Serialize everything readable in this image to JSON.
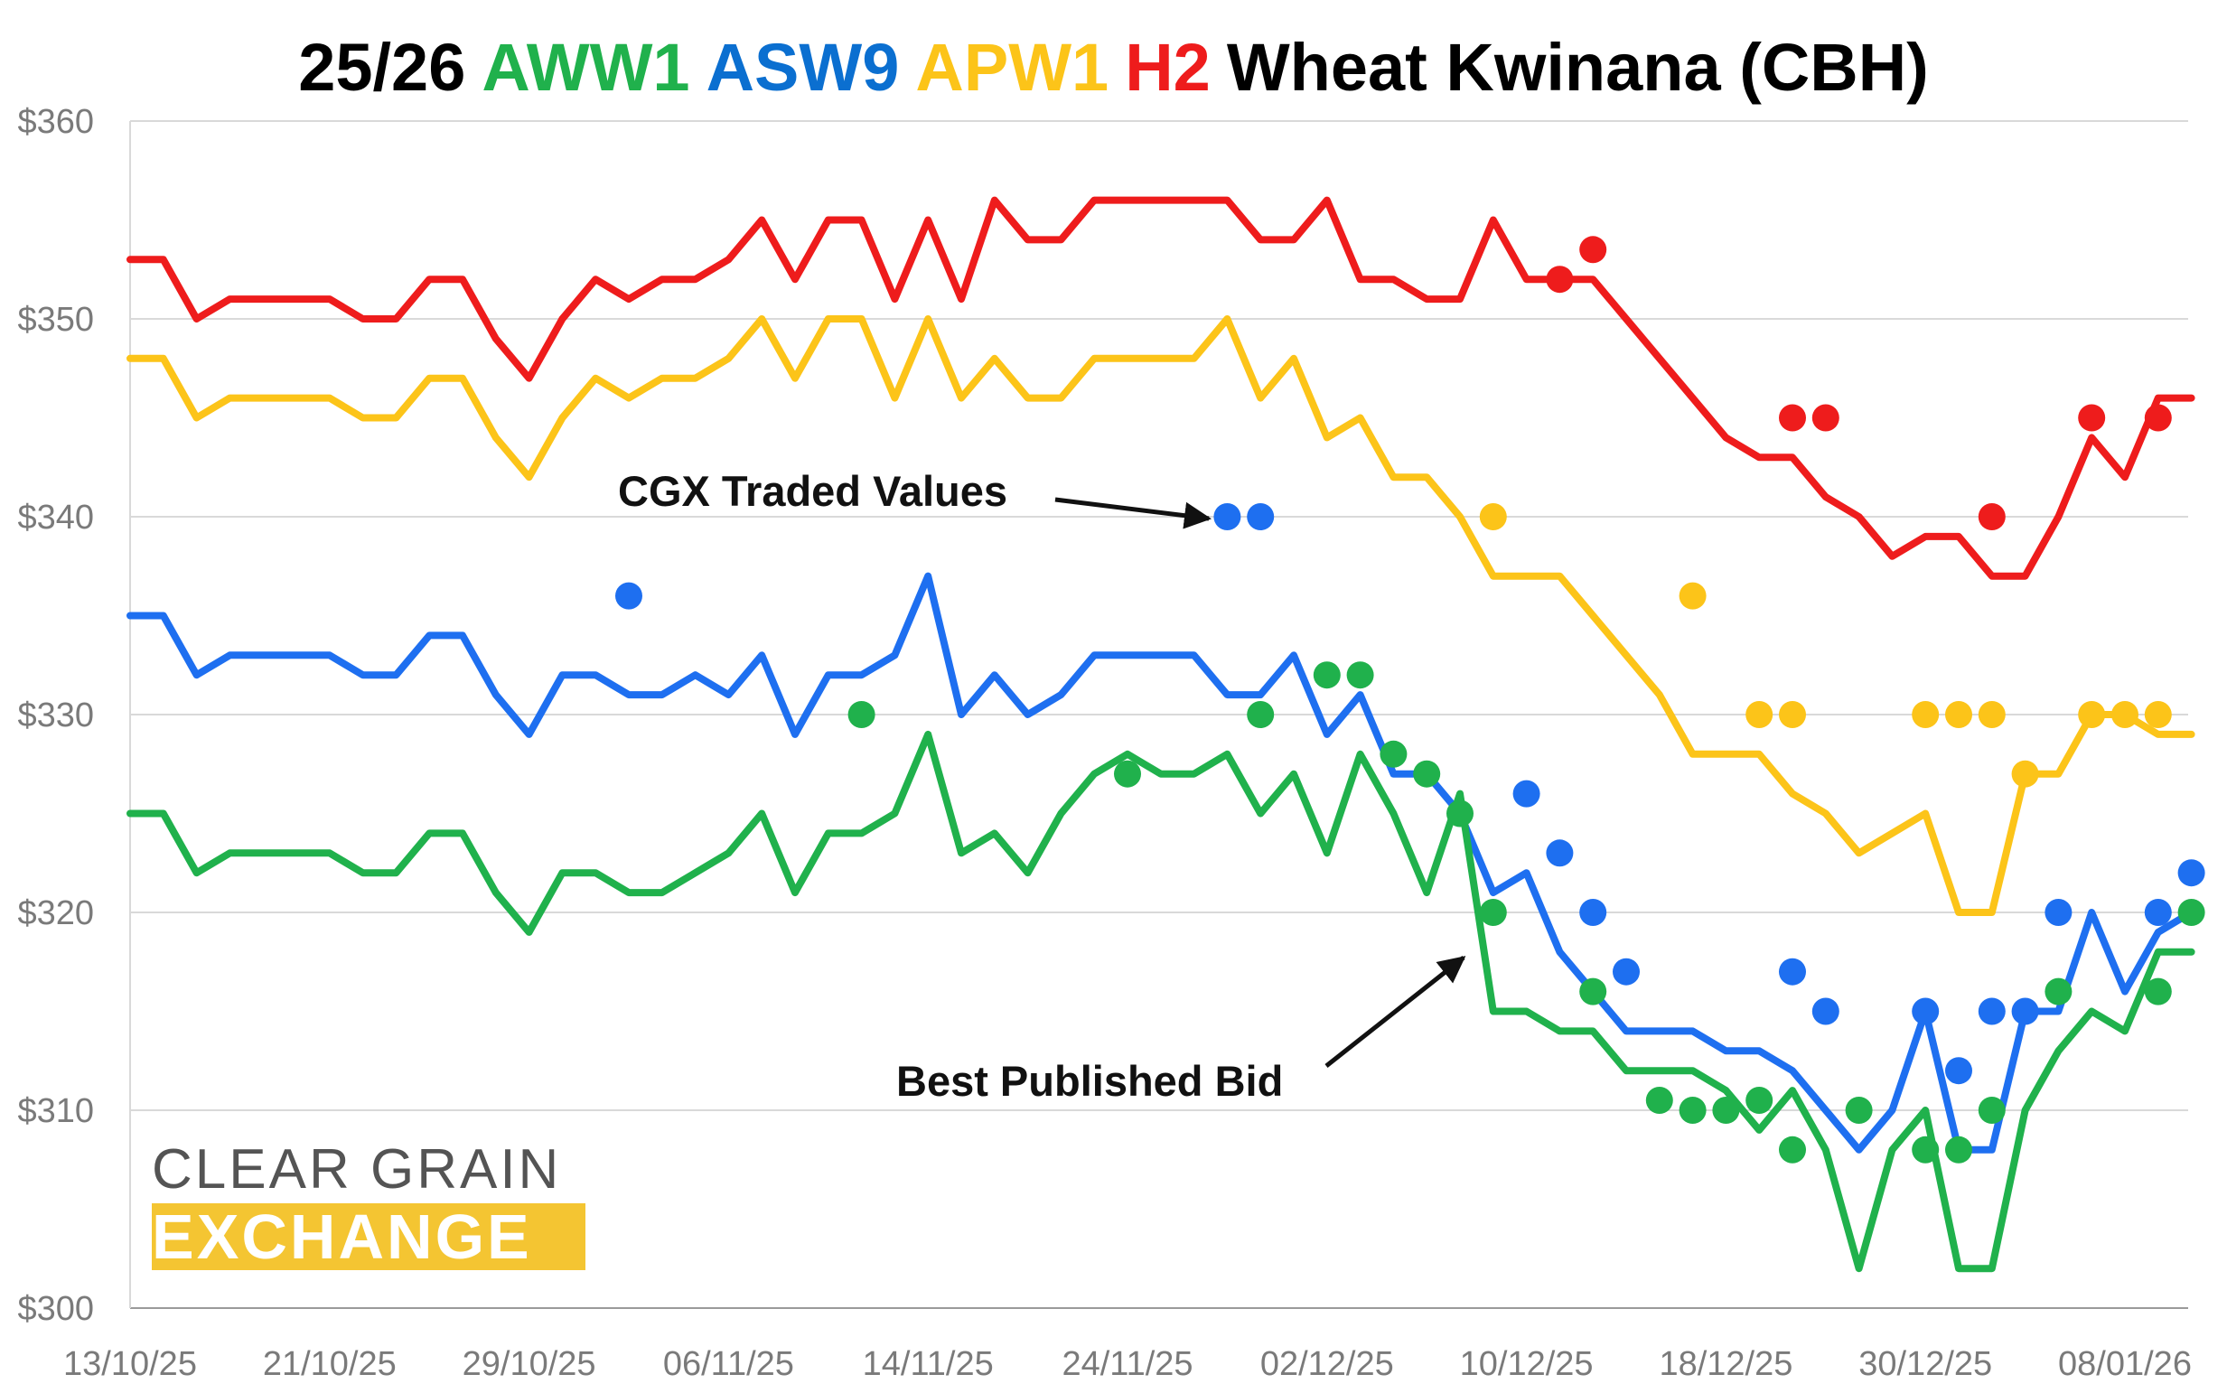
{
  "chart_data": {
    "type": "line",
    "title": {
      "prefix": "25/26",
      "aww1": "AWW1",
      "asw9": "ASW9",
      "apw1": "APW1",
      "h2": "H2",
      "rest": "Wheat Kwinana (CBH)"
    },
    "ylim": [
      300,
      360
    ],
    "yticks": [
      {
        "value": 300,
        "label": "$300"
      },
      {
        "value": 310,
        "label": "$310"
      },
      {
        "value": 320,
        "label": "$320"
      },
      {
        "value": 330,
        "label": "$330"
      },
      {
        "value": 340,
        "label": "$340"
      },
      {
        "value": 350,
        "label": "$350"
      },
      {
        "value": 360,
        "label": "$360"
      }
    ],
    "x_count": 63,
    "xticks": [
      {
        "index": 0,
        "label": "13/10/25"
      },
      {
        "index": 6,
        "label": "21/10/25"
      },
      {
        "index": 12,
        "label": "29/10/25"
      },
      {
        "index": 18,
        "label": "06/11/25"
      },
      {
        "index": 24,
        "label": "14/11/25"
      },
      {
        "index": 30,
        "label": "24/11/25"
      },
      {
        "index": 36,
        "label": "02/12/25"
      },
      {
        "index": 42,
        "label": "10/12/25"
      },
      {
        "index": 48,
        "label": "18/12/25"
      },
      {
        "index": 54,
        "label": "30/12/25"
      },
      {
        "index": 60,
        "label": "08/01/26"
      }
    ],
    "grid": "horizontal",
    "series": [
      {
        "name": "H2",
        "color": "#ee1c1c",
        "values": [
          353,
          353,
          350,
          351,
          351,
          351,
          351,
          350,
          350,
          352,
          352,
          349,
          347,
          350,
          352,
          351,
          352,
          352,
          353,
          355,
          352,
          355,
          355,
          351,
          355,
          351,
          356,
          354,
          354,
          356,
          356,
          356,
          356,
          356,
          354,
          354,
          356,
          352,
          352,
          351,
          351,
          355,
          352,
          352,
          352,
          350,
          348,
          346,
          344,
          343,
          343,
          341,
          340,
          338,
          339,
          339,
          337,
          337,
          340,
          344,
          342,
          346,
          346
        ],
        "traded": [
          [
            43,
            352
          ],
          [
            44,
            353.5
          ],
          [
            50,
            345
          ],
          [
            51,
            345
          ],
          [
            56,
            340
          ],
          [
            59,
            345
          ],
          [
            61,
            345
          ]
        ]
      },
      {
        "name": "APW1",
        "color": "#fcc419",
        "values": [
          348,
          348,
          345,
          346,
          346,
          346,
          346,
          345,
          345,
          347,
          347,
          344,
          342,
          345,
          347,
          346,
          347,
          347,
          348,
          350,
          347,
          350,
          350,
          346,
          350,
          346,
          348,
          346,
          346,
          348,
          348,
          348,
          348,
          350,
          346,
          348,
          344,
          345,
          342,
          342,
          340,
          337,
          337,
          337,
          335,
          333,
          331,
          328,
          328,
          328,
          326,
          325,
          323,
          324,
          325,
          320,
          320,
          327,
          327,
          330,
          330,
          329,
          329
        ],
        "traded": [
          [
            41,
            340
          ],
          [
            47,
            336
          ],
          [
            49,
            330
          ],
          [
            50,
            330
          ],
          [
            54,
            330
          ],
          [
            55,
            330
          ],
          [
            56,
            330
          ],
          [
            57,
            327
          ],
          [
            59,
            330
          ],
          [
            60,
            330
          ],
          [
            61,
            330
          ]
        ]
      },
      {
        "name": "ASW9",
        "color": "#1e6ff0",
        "values": [
          335,
          335,
          332,
          333,
          333,
          333,
          333,
          332,
          332,
          334,
          334,
          331,
          329,
          332,
          332,
          331,
          331,
          332,
          331,
          333,
          329,
          332,
          332,
          333,
          337,
          330,
          332,
          330,
          331,
          333,
          333,
          333,
          333,
          331,
          331,
          333,
          329,
          331,
          327,
          327,
          325,
          321,
          322,
          318,
          316,
          314,
          314,
          314,
          313,
          313,
          312,
          310,
          308,
          310,
          315,
          308,
          308,
          315,
          315,
          320,
          316,
          319,
          320
        ],
        "traded": [
          [
            15,
            336
          ],
          [
            33,
            340
          ],
          [
            34,
            340
          ],
          [
            42,
            326
          ],
          [
            43,
            323
          ],
          [
            44,
            320
          ],
          [
            45,
            317
          ],
          [
            50,
            317
          ],
          [
            51,
            315
          ],
          [
            54,
            315
          ],
          [
            55,
            312
          ],
          [
            56,
            315
          ],
          [
            57,
            315
          ],
          [
            58,
            320
          ],
          [
            61,
            320
          ],
          [
            62,
            322
          ]
        ]
      },
      {
        "name": "AWW1",
        "color": "#20b14c",
        "values": [
          325,
          325,
          322,
          323,
          323,
          323,
          323,
          322,
          322,
          324,
          324,
          321,
          319,
          322,
          322,
          321,
          321,
          322,
          323,
          325,
          321,
          324,
          324,
          325,
          329,
          323,
          324,
          322,
          325,
          327,
          328,
          327,
          327,
          328,
          325,
          327,
          323,
          328,
          325,
          321,
          326,
          315,
          315,
          314,
          314,
          312,
          312,
          312,
          311,
          309,
          311,
          308,
          302,
          308,
          310,
          302,
          302,
          310,
          313,
          315,
          314,
          318,
          318
        ],
        "traded": [
          [
            22,
            330
          ],
          [
            30,
            327
          ],
          [
            34,
            330
          ],
          [
            36,
            332
          ],
          [
            37,
            332
          ],
          [
            38,
            328
          ],
          [
            39,
            327
          ],
          [
            40,
            325
          ],
          [
            41,
            320
          ],
          [
            44,
            316
          ],
          [
            46,
            310.5
          ],
          [
            47,
            310
          ],
          [
            48,
            310
          ],
          [
            49,
            310.5
          ],
          [
            50,
            308
          ],
          [
            52,
            310
          ],
          [
            54,
            308
          ],
          [
            55,
            308
          ],
          [
            56,
            310
          ],
          [
            58,
            316
          ],
          [
            61,
            316
          ],
          [
            62,
            320
          ]
        ]
      }
    ],
    "annotations": [
      {
        "name": "traded-annotation",
        "text": "CGX Traded Values"
      },
      {
        "name": "bid-annotation",
        "text": "Best Published Bid"
      }
    ]
  },
  "logo": {
    "line1": "CLEAR GRAIN",
    "line2": "EXCHANGE"
  }
}
